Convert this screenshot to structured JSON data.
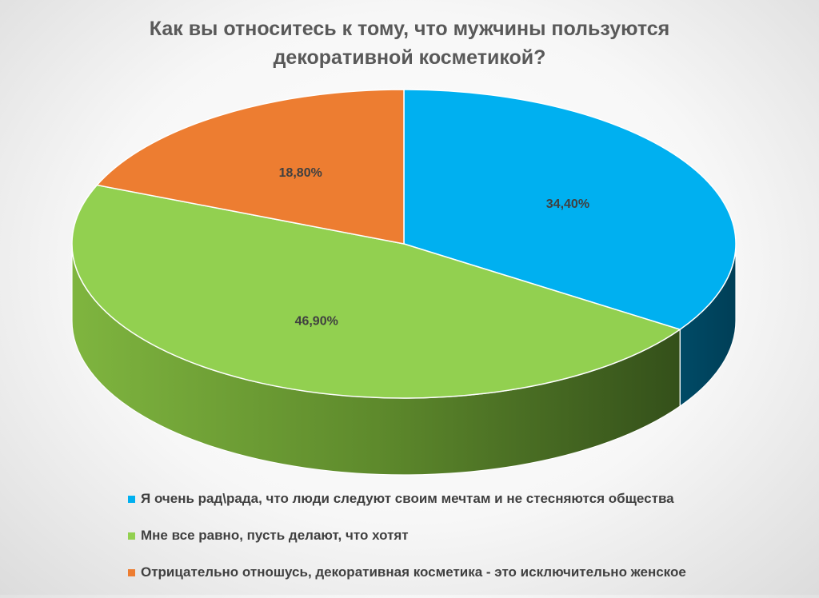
{
  "chart_data": {
    "type": "pie",
    "title_lines": [
      "Как вы относитесь к тому, что мужчины пользуются",
      "декоративной косметикой?"
    ],
    "slices": [
      {
        "label": "Я очень рад\\рада, что люди следуют своим мечтам и не стесняются общества",
        "value": 34.4,
        "display": "34,40%",
        "color": "#00B0F0"
      },
      {
        "label": "Мне все равно, пусть делают, что хотят",
        "value": 46.9,
        "display": "46,90%",
        "color": "#92D050"
      },
      {
        "label": "Отрицательно отношусь, декоративная косметика - это исключительно женское",
        "value": 18.8,
        "display": "18,80%",
        "color": "#ED7D31"
      }
    ],
    "legend_position": "bottom",
    "style": "3d"
  }
}
